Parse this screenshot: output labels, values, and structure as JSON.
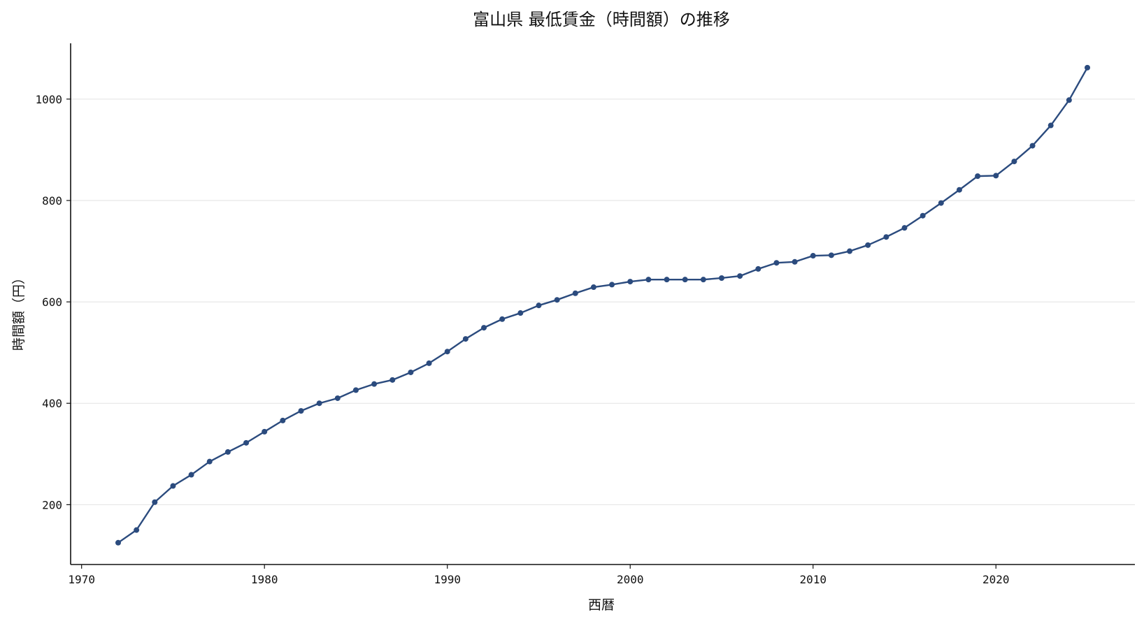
{
  "chart_data": {
    "type": "line",
    "title": "富山県 最低賃金（時間額）の推移",
    "xlabel": "西暦",
    "ylabel": "時間額（円）",
    "xlim": [
      1969.4,
      2027.6
    ],
    "ylim": [
      82,
      1110
    ],
    "xticks": [
      1970,
      1980,
      1990,
      2000,
      2010,
      2020
    ],
    "yticks": [
      200,
      400,
      600,
      800,
      1000
    ],
    "grid": "horizontal",
    "line_color": "#2b4b7e",
    "series": [
      {
        "x": [
          1972,
          1973,
          1974,
          1975,
          1976,
          1977,
          1978,
          1979,
          1980,
          1981,
          1982,
          1983,
          1984,
          1985,
          1986,
          1987,
          1988,
          1989,
          1990,
          1991,
          1992,
          1993,
          1994,
          1995,
          1996,
          1997,
          1998,
          1999,
          2000,
          2001,
          2002,
          2003,
          2004,
          2005,
          2006,
          2007,
          2008,
          2009,
          2010,
          2011,
          2012,
          2013,
          2014,
          2015,
          2016,
          2017,
          2018,
          2019,
          2020,
          2021,
          2022,
          2023,
          2024,
          2025
        ],
        "values": [
          125,
          150,
          205,
          237,
          259,
          285,
          304,
          322,
          344,
          366,
          385,
          400,
          410,
          426,
          438,
          446,
          461,
          479,
          502,
          527,
          549,
          566,
          578,
          593,
          604,
          617,
          629,
          634,
          640,
          644,
          644,
          644,
          644,
          647,
          651,
          665,
          677,
          679,
          691,
          692,
          700,
          712,
          728,
          746,
          770,
          795,
          821,
          848,
          849,
          877,
          908,
          948,
          998,
          1062
        ]
      }
    ]
  }
}
